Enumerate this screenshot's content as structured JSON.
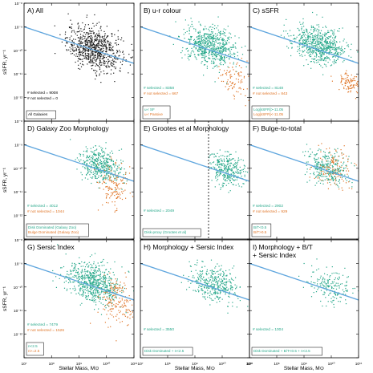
{
  "colors": {
    "all": "#1a1a1a",
    "selected": "#27a88a",
    "not_selected": "#e0772a",
    "fit_line": "#5fa6de",
    "frame": "#000000"
  },
  "axes": {
    "xlabel": "Stellar Mass, M⊙",
    "ylabel": "sSFR, yr⁻¹",
    "x_range_log": [
      7,
      11
    ],
    "y_range_log": [
      -13,
      -8
    ],
    "x_tick_labels": [
      {
        "v": 7,
        "t": "10⁷"
      },
      {
        "v": 8,
        "t": "10⁸"
      },
      {
        "v": 9,
        "t": "10⁹"
      },
      {
        "v": 10,
        "t": "10¹⁰"
      },
      {
        "v": 11,
        "t": "10¹¹"
      }
    ],
    "y_tick_labels": [
      {
        "v": -8,
        "t": "10⁻⁸"
      },
      {
        "v": -9,
        "t": "10⁻⁹"
      },
      {
        "v": -10,
        "t": "10⁻¹⁰"
      },
      {
        "v": -11,
        "t": "10⁻¹¹"
      },
      {
        "v": -12,
        "t": "10⁻¹²"
      }
    ]
  },
  "chart_data": [
    {
      "type": "scatter",
      "title": "A) All",
      "counts": {
        "selected_label": "# selected = 9008",
        "not_selected_label": "# not selected = 0"
      },
      "legend": [
        "All Galaxies"
      ],
      "fit_line": {
        "y_at_7": -9.0,
        "y_at_11": -10.55
      },
      "selected": {
        "x_mean": 9.55,
        "x_sd": 0.5,
        "y_mean": -9.9,
        "y_sd": 0.45,
        "n": 750
      },
      "not_selected": {
        "n": 0
      },
      "color_mode": "all"
    },
    {
      "type": "scatter",
      "title": "B) u-r colour",
      "counts": {
        "selected_label": "# selected = 8358",
        "not_selected_label": "# not selected = 667"
      },
      "legend": [
        "u-r SF",
        "u-r Passive"
      ],
      "fit_line": {
        "y_at_7": -9.0,
        "y_at_11": -10.55
      },
      "selected": {
        "x_mean": 9.55,
        "x_sd": 0.48,
        "y_mean": -9.8,
        "y_sd": 0.4,
        "n": 650
      },
      "not_selected": {
        "x_mean": 10.45,
        "x_sd": 0.28,
        "y_mean": -11.2,
        "y_sd": 0.35,
        "n": 90
      }
    },
    {
      "type": "scatter",
      "title": "C) sSFR",
      "counts": {
        "selected_label": "# selected = 8148",
        "not_selected_label": "# not selected = 843"
      },
      "legend": [
        "Log[sSFR]>-11.05",
        "Log[sSFR]<-11.05"
      ],
      "fit_line": {
        "y_at_7": -9.0,
        "y_at_11": -10.55
      },
      "selected": {
        "x_mean": 9.55,
        "x_sd": 0.48,
        "y_mean": -9.75,
        "y_sd": 0.38,
        "n": 650
      },
      "not_selected": {
        "x_mean": 10.6,
        "x_sd": 0.22,
        "y_mean": -11.35,
        "y_sd": 0.2,
        "n": 100
      }
    },
    {
      "type": "scatter",
      "title": "D) Galaxy Zoo Morphology",
      "counts": {
        "selected_label": "# selected = 4012",
        "not_selected_label": "# not selected = 1044"
      },
      "legend": [
        "Disk Dominated (Galaxy Zoo)",
        "Bulge Dominated (Galaxy Zoo)"
      ],
      "fit_line": {
        "y_at_7": -9.0,
        "y_at_11": -10.55
      },
      "selected": {
        "x_mean": 9.75,
        "x_sd": 0.38,
        "y_mean": -9.85,
        "y_sd": 0.38,
        "n": 420
      },
      "not_selected": {
        "x_mean": 10.25,
        "x_sd": 0.3,
        "y_mean": -10.7,
        "y_sd": 0.5,
        "n": 140
      }
    },
    {
      "type": "scatter",
      "title": "E) Grootes et al Morphology",
      "counts": {
        "selected_label": "# selected = 2049",
        "not_selected_label": ""
      },
      "legend": [
        "Disk-proxy (Grootes et al)"
      ],
      "fit_line": {
        "y_at_7": -9.0,
        "y_at_11": -10.55
      },
      "selected": {
        "x_mean": 10.15,
        "x_sd": 0.32,
        "y_mean": -10.0,
        "y_sd": 0.35,
        "n": 320
      },
      "not_selected": {
        "n": 0
      },
      "cut_x": 9.5
    },
    {
      "type": "scatter",
      "title": "F) Bulge-to-total",
      "counts": {
        "selected_label": "# selected = 2902",
        "not_selected_label": "# not selected = 929"
      },
      "legend": [
        "B/T<0.5",
        "B/T>0.5"
      ],
      "fit_line": {
        "y_at_7": -9.0,
        "y_at_11": -10.55
      },
      "selected": {
        "x_mean": 9.85,
        "x_sd": 0.38,
        "y_mean": -9.95,
        "y_sd": 0.38,
        "n": 300
      },
      "not_selected": {
        "x_mean": 10.05,
        "x_sd": 0.35,
        "y_mean": -10.05,
        "y_sd": 0.45,
        "n": 120
      }
    },
    {
      "type": "scatter",
      "title": "G) Sersic Index",
      "counts": {
        "selected_label": "# selected = 7479",
        "not_selected_label": "# not selected = 1526"
      },
      "legend": [
        "n<2.5",
        "n>=2.5"
      ],
      "fit_line": {
        "y_at_7": -9.0,
        "y_at_11": -10.55
      },
      "selected": {
        "x_mean": 9.5,
        "x_sd": 0.5,
        "y_mean": -9.8,
        "y_sd": 0.42,
        "n": 640
      },
      "not_selected": {
        "x_mean": 10.35,
        "x_sd": 0.32,
        "y_mean": -10.6,
        "y_sd": 0.55,
        "n": 170
      }
    },
    {
      "type": "scatter",
      "title": "H) Morphology + Sersic Index",
      "counts": {
        "selected_label": "# selected = 3550",
        "not_selected_label": ""
      },
      "legend": [
        "Disk Dominated + n<2.5"
      ],
      "fit_line": {
        "y_at_7": -9.0,
        "y_at_11": -10.55
      },
      "selected": {
        "x_mean": 9.7,
        "x_sd": 0.45,
        "y_mean": -9.85,
        "y_sd": 0.38,
        "n": 380
      },
      "not_selected": {
        "n": 0
      }
    },
    {
      "type": "scatter",
      "title": "I) Morphology + B/T\n+ Sersic Index",
      "counts": {
        "selected_label": "# selected = 1004",
        "not_selected_label": ""
      },
      "legend": [
        "Disk Dominated + B/T<0.5 + n<2.5"
      ],
      "fit_line": {
        "y_at_7": -9.0,
        "y_at_11": -10.55
      },
      "selected": {
        "x_mean": 9.95,
        "x_sd": 0.4,
        "y_mean": -9.95,
        "y_sd": 0.36,
        "n": 180
      },
      "not_selected": {
        "n": 0
      }
    }
  ]
}
